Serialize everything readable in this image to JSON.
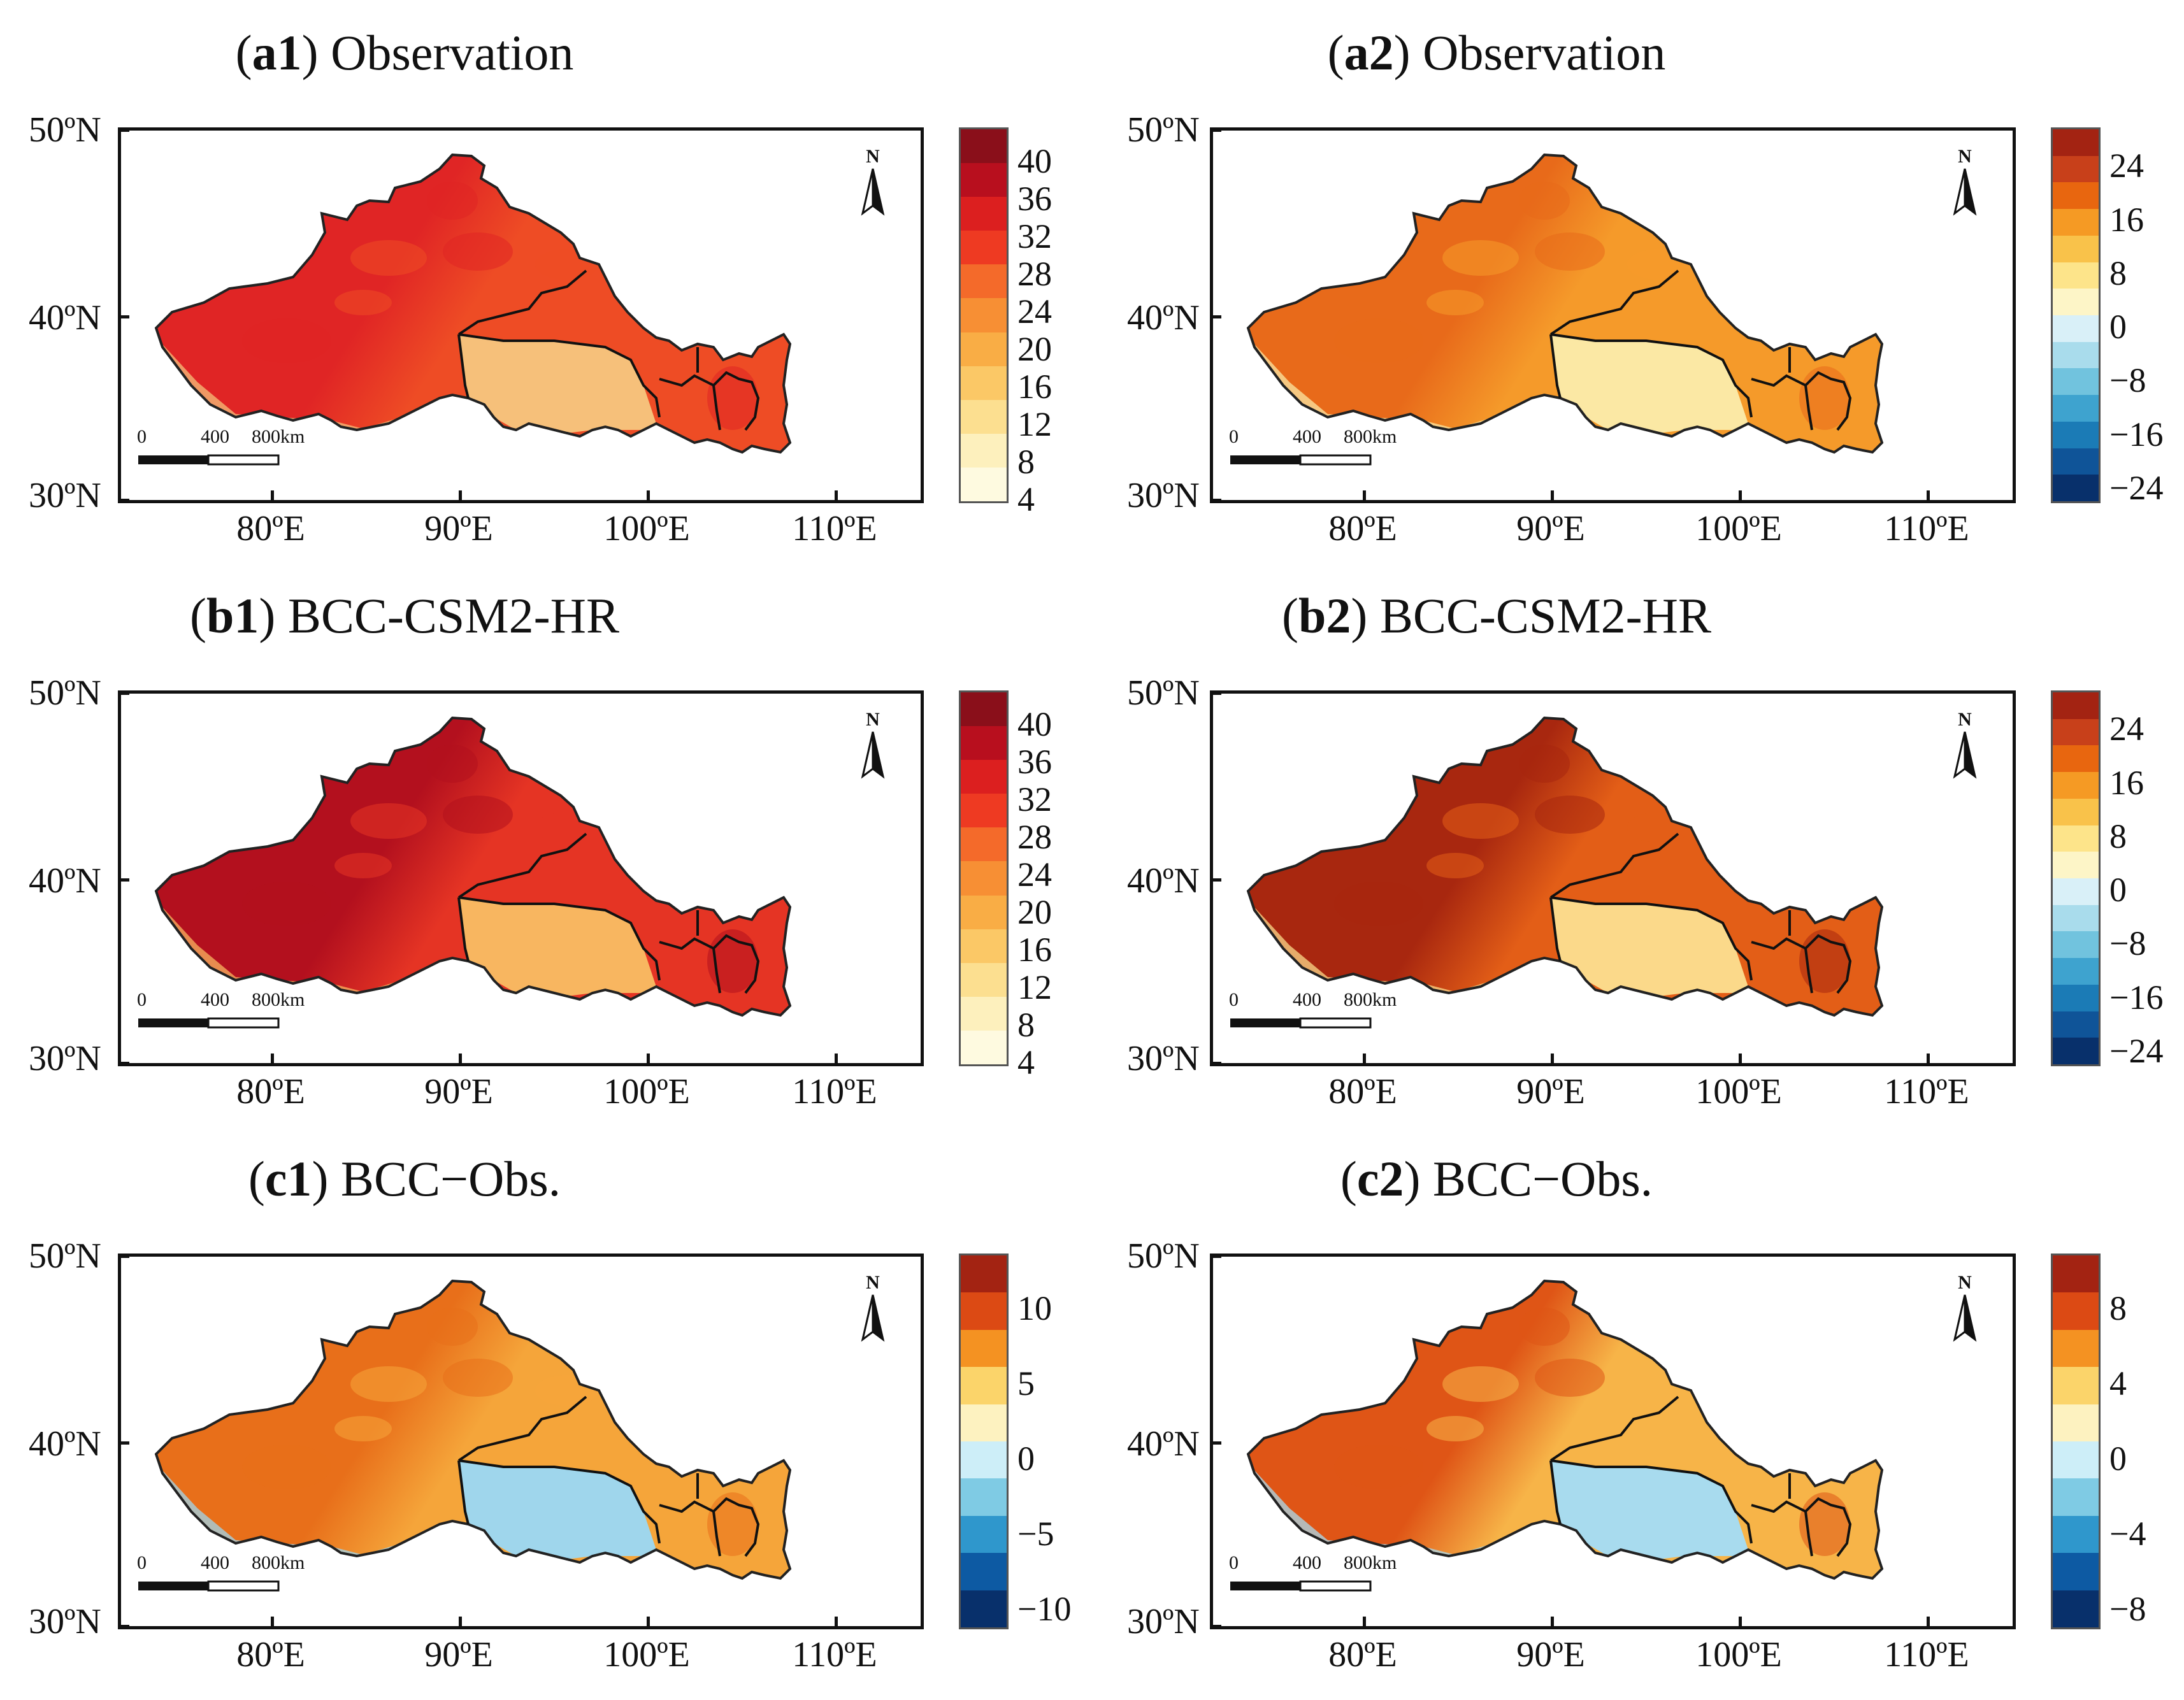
{
  "panels": [
    {
      "id": "a1",
      "label": "a1",
      "title": "Observation",
      "colorbar": {
        "labels": [
          "40",
          "36",
          "32",
          "28",
          "24",
          "20",
          "16",
          "12",
          "8",
          "4"
        ],
        "colors": [
          "#8a0f1a",
          "#b80f1e",
          "#dc1f1f",
          "#ee3a22",
          "#f46a2a",
          "#f78f34",
          "#f9ad45",
          "#fbc866",
          "#fcdf90",
          "#fdf0bd",
          "#fefae0"
        ]
      },
      "map_fill": [
        "#e02525",
        "#ee4c25",
        "#f6c07a"
      ],
      "lat_labels": [
        "50ºN",
        "40ºN",
        "30ºN"
      ],
      "lon_labels": [
        "80ºE",
        "90ºE",
        "100ºE",
        "110ºE"
      ],
      "scale": {
        "zero": "0",
        "mid": "400",
        "end": "800km"
      },
      "north": "N"
    },
    {
      "id": "a2",
      "label": "a2",
      "title": "Observation",
      "colorbar": {
        "labels": [
          "24",
          "16",
          "8",
          "0",
          "−8",
          "−16",
          "−24"
        ],
        "colors": [
          "#a32312",
          "#c8401a",
          "#e8660f",
          "#f59a24",
          "#f9c24a",
          "#fde48a",
          "#fdf5c7",
          "#d9f0f8",
          "#a9dcec",
          "#71c3de",
          "#3ea3cf",
          "#1b7bb6",
          "#0f5498",
          "#08306b"
        ]
      },
      "map_fill": [
        "#e86a1a",
        "#f59a2a",
        "#fbe8a4"
      ],
      "lat_labels": [
        "50ºN",
        "40ºN",
        "30ºN"
      ],
      "lon_labels": [
        "80ºE",
        "90ºE",
        "100ºE",
        "110ºE"
      ],
      "scale": {
        "zero": "0",
        "mid": "400",
        "end": "800km"
      },
      "north": "N"
    },
    {
      "id": "b1",
      "label": "b1",
      "title": "BCC-CSM2-HR",
      "colorbar": {
        "labels": [
          "40",
          "36",
          "32",
          "28",
          "24",
          "20",
          "16",
          "12",
          "8",
          "4"
        ],
        "colors": [
          "#8a0f1a",
          "#b80f1e",
          "#dc1f1f",
          "#ee3a22",
          "#f46a2a",
          "#f78f34",
          "#f9ad45",
          "#fbc866",
          "#fcdf90",
          "#fdf0bd",
          "#fefae0"
        ]
      },
      "map_fill": [
        "#b3101e",
        "#e53424",
        "#f8b660"
      ],
      "lat_labels": [
        "50ºN",
        "40ºN",
        "30ºN"
      ],
      "lon_labels": [
        "80ºE",
        "90ºE",
        "100ºE",
        "110ºE"
      ],
      "scale": {
        "zero": "0",
        "mid": "400",
        "end": "800km"
      },
      "north": "N"
    },
    {
      "id": "b2",
      "label": "b2",
      "title": "BCC-CSM2-HR",
      "colorbar": {
        "labels": [
          "24",
          "16",
          "8",
          "0",
          "−8",
          "−16",
          "−24"
        ],
        "colors": [
          "#a32312",
          "#c8401a",
          "#e8660f",
          "#f59a24",
          "#f9c24a",
          "#fde48a",
          "#fdf5c7",
          "#d9f0f8",
          "#a9dcec",
          "#71c3de",
          "#3ea3cf",
          "#1b7bb6",
          "#0f5498",
          "#08306b"
        ]
      },
      "map_fill": [
        "#a8270f",
        "#e35e17",
        "#fbd98a"
      ],
      "lat_labels": [
        "50ºN",
        "40ºN",
        "30ºN"
      ],
      "lon_labels": [
        "80ºE",
        "90ºE",
        "100ºE",
        "110ºE"
      ],
      "scale": {
        "zero": "0",
        "mid": "400",
        "end": "800km"
      },
      "north": "N"
    },
    {
      "id": "c1",
      "label": "c1",
      "title": "BCC−Obs.",
      "colorbar": {
        "labels": [
          "10",
          "5",
          "0",
          "−5",
          "−10"
        ],
        "colors": [
          "#a32312",
          "#dc4a14",
          "#f49222",
          "#fbd46a",
          "#fdf2c0",
          "#cdeef8",
          "#7fcbe4",
          "#2f97cc",
          "#0d5aa3",
          "#08306b"
        ]
      },
      "map_fill": [
        "#e86f1a",
        "#f5a53a",
        "#9fd6ec"
      ],
      "lat_labels": [
        "50ºN",
        "40ºN",
        "30ºN"
      ],
      "lon_labels": [
        "80ºE",
        "90ºE",
        "100ºE",
        "110ºE"
      ],
      "scale": {
        "zero": "0",
        "mid": "400",
        "end": "800km"
      },
      "north": "N"
    },
    {
      "id": "c2",
      "label": "c2",
      "title": "BCC−Obs.",
      "colorbar": {
        "labels": [
          "8",
          "4",
          "0",
          "−4",
          "−8"
        ],
        "colors": [
          "#a32312",
          "#dc4a14",
          "#f49222",
          "#fbd46a",
          "#fdf2c0",
          "#cdeef8",
          "#7fcbe4",
          "#2f97cc",
          "#0d5aa3",
          "#08306b"
        ]
      },
      "map_fill": [
        "#df5516",
        "#f7b448",
        "#a8dbee"
      ],
      "lat_labels": [
        "50ºN",
        "40ºN",
        "30ºN"
      ],
      "lon_labels": [
        "80ºE",
        "90ºE",
        "100ºE",
        "110ºE"
      ],
      "scale": {
        "zero": "0",
        "mid": "400",
        "end": "800km"
      },
      "north": "N"
    }
  ]
}
